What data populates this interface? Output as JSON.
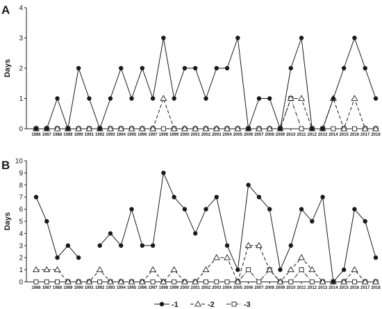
{
  "figure": {
    "legend": [
      {
        "label": "-1",
        "marker": "circle",
        "line": "solid"
      },
      {
        "label": "-2",
        "marker": "triangle",
        "line": "dashed"
      },
      {
        "label": "-3",
        "marker": "square",
        "line": "dash-dot"
      }
    ],
    "colors": {
      "ink": "#1a1a1a",
      "marker_fill": "#ffffff"
    }
  },
  "chart_data": [
    {
      "type": "line",
      "panel": "A",
      "xlabel": "",
      "ylabel": "Days",
      "ylim": [
        0,
        4
      ],
      "yticks": [
        0,
        1,
        2,
        3,
        4
      ],
      "grid": false,
      "legend": "bottom-center",
      "x": [
        1986,
        1987,
        1988,
        1989,
        1990,
        1991,
        1992,
        1993,
        1994,
        1995,
        1996,
        1997,
        1998,
        1999,
        2000,
        2001,
        2002,
        2003,
        2004,
        2005,
        2006,
        2007,
        2008,
        2009,
        2010,
        2011,
        2012,
        2013,
        2014,
        2015,
        2016,
        2017,
        2018
      ],
      "series": [
        {
          "name": "-1",
          "marker": "circle",
          "line": "solid",
          "values": [
            0,
            0,
            1,
            0,
            2,
            1,
            0,
            1,
            2,
            1,
            2,
            1,
            3,
            1,
            2,
            2,
            1,
            2,
            2,
            3,
            0,
            1,
            1,
            0,
            2,
            3,
            0,
            0,
            1,
            2,
            3,
            2,
            1
          ]
        },
        {
          "name": "-2",
          "marker": "triangle",
          "line": "dashed",
          "values": [
            0,
            0,
            0,
            0,
            0,
            0,
            0,
            0,
            0,
            0,
            0,
            0,
            1,
            0,
            0,
            0,
            0,
            0,
            0,
            0,
            0,
            0,
            0,
            0,
            1,
            1,
            0,
            0,
            1,
            0,
            1,
            0,
            0
          ]
        },
        {
          "name": "-3",
          "marker": "square",
          "line": "dash-dot",
          "values": [
            0,
            0,
            0,
            0,
            0,
            0,
            0,
            0,
            0,
            0,
            0,
            0,
            0,
            0,
            0,
            0,
            0,
            0,
            0,
            0,
            0,
            0,
            0,
            0,
            1,
            0,
            0,
            0,
            0,
            0,
            0,
            0,
            0
          ]
        }
      ]
    },
    {
      "type": "line",
      "panel": "B",
      "xlabel": "",
      "ylabel": "Days",
      "ylim": [
        0,
        10
      ],
      "yticks": [
        0,
        1,
        2,
        3,
        4,
        5,
        6,
        7,
        8,
        9,
        10
      ],
      "grid": false,
      "legend": "bottom-center",
      "x": [
        1986,
        1987,
        1988,
        1989,
        1990,
        1991,
        1992,
        1993,
        1994,
        1995,
        1996,
        1997,
        1998,
        1999,
        2000,
        2001,
        2002,
        2003,
        2004,
        2005,
        2006,
        2007,
        2008,
        2009,
        2010,
        2011,
        2012,
        2013,
        2014,
        2015,
        2016,
        2017,
        2018
      ],
      "series": [
        {
          "name": "-1",
          "marker": "circle",
          "line": "solid",
          "values": [
            7,
            5,
            2,
            3,
            2,
            null,
            3,
            4,
            3,
            6,
            3,
            3,
            9,
            7,
            6,
            4,
            6,
            7,
            3,
            1,
            8,
            7,
            6,
            1,
            3,
            6,
            5,
            7,
            0,
            1,
            6,
            5,
            2
          ]
        },
        {
          "name": "-2",
          "marker": "triangle",
          "line": "dashed",
          "values": [
            1,
            1,
            1,
            0,
            0,
            0,
            1,
            0,
            0,
            0,
            0,
            1,
            0,
            1,
            0,
            0,
            1,
            2,
            2,
            0,
            3,
            3,
            1,
            0,
            1,
            2,
            1,
            0,
            0,
            0,
            1,
            0,
            0
          ]
        },
        {
          "name": "-3",
          "marker": "square",
          "line": "dash-dot",
          "values": [
            0,
            0,
            0,
            0,
            0,
            0,
            0,
            0,
            0,
            0,
            0,
            0,
            0,
            0,
            0,
            0,
            0,
            0,
            0,
            0,
            1,
            0,
            1,
            0,
            0,
            1,
            0,
            0,
            0,
            0,
            0,
            0,
            0
          ]
        }
      ]
    }
  ]
}
